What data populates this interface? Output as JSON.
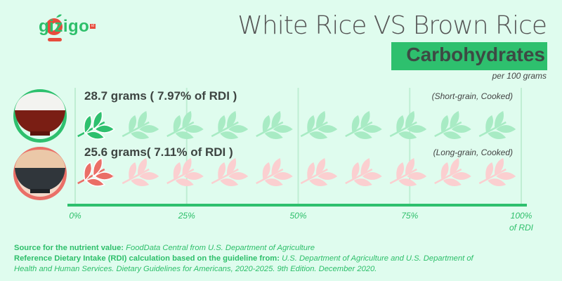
{
  "logo": {
    "text": "gizigo",
    "badge": "id"
  },
  "header": {
    "title": "White Rice VS Brown Rice",
    "nutrient": "Carbohydrates",
    "basis": "per 100 grams"
  },
  "colors": {
    "background": "#dffcee",
    "accent": "#2ec06e",
    "white_rice": "#2ec06e",
    "white_rice_faded": "#a8ebc4",
    "brown_rice": "#ea6f67",
    "brown_rice_faded": "#fbcfd0"
  },
  "chart_data": {
    "type": "bar",
    "title": "Carbohydrates",
    "xlabel": "of RDI",
    "xlim": [
      0,
      100
    ],
    "ticks": [
      "0%",
      "25%",
      "50%",
      "75%",
      "100%"
    ],
    "tick_unit_label": "of RDI",
    "grid": true,
    "series": [
      {
        "name": "White Rice",
        "variety": "(Short-grain, Cooked)",
        "label": "28.7 grams ( 7.97% of RDI )",
        "grams": 28.7,
        "value": 7.97
      },
      {
        "name": "Brown Rice",
        "variety": "(Long-grain, Cooked)",
        "label": "25.6 grams( 7.11% of RDI )",
        "grams": 25.6,
        "value": 7.11
      }
    ]
  },
  "footer": {
    "source_label": "Source for the nutrient value:",
    "source_text": "FoodData Central from U.S. Department of Agriculture",
    "rdi_label": "Reference Dietary Intake (RDI) calculation based on the guideline from:",
    "rdi_text": "U.S. Department of Agriculture and U.S. Department of Health and Human Services. Dietary Guidelines for Americans, 2020-2025. 9th Edition. December 2020."
  }
}
